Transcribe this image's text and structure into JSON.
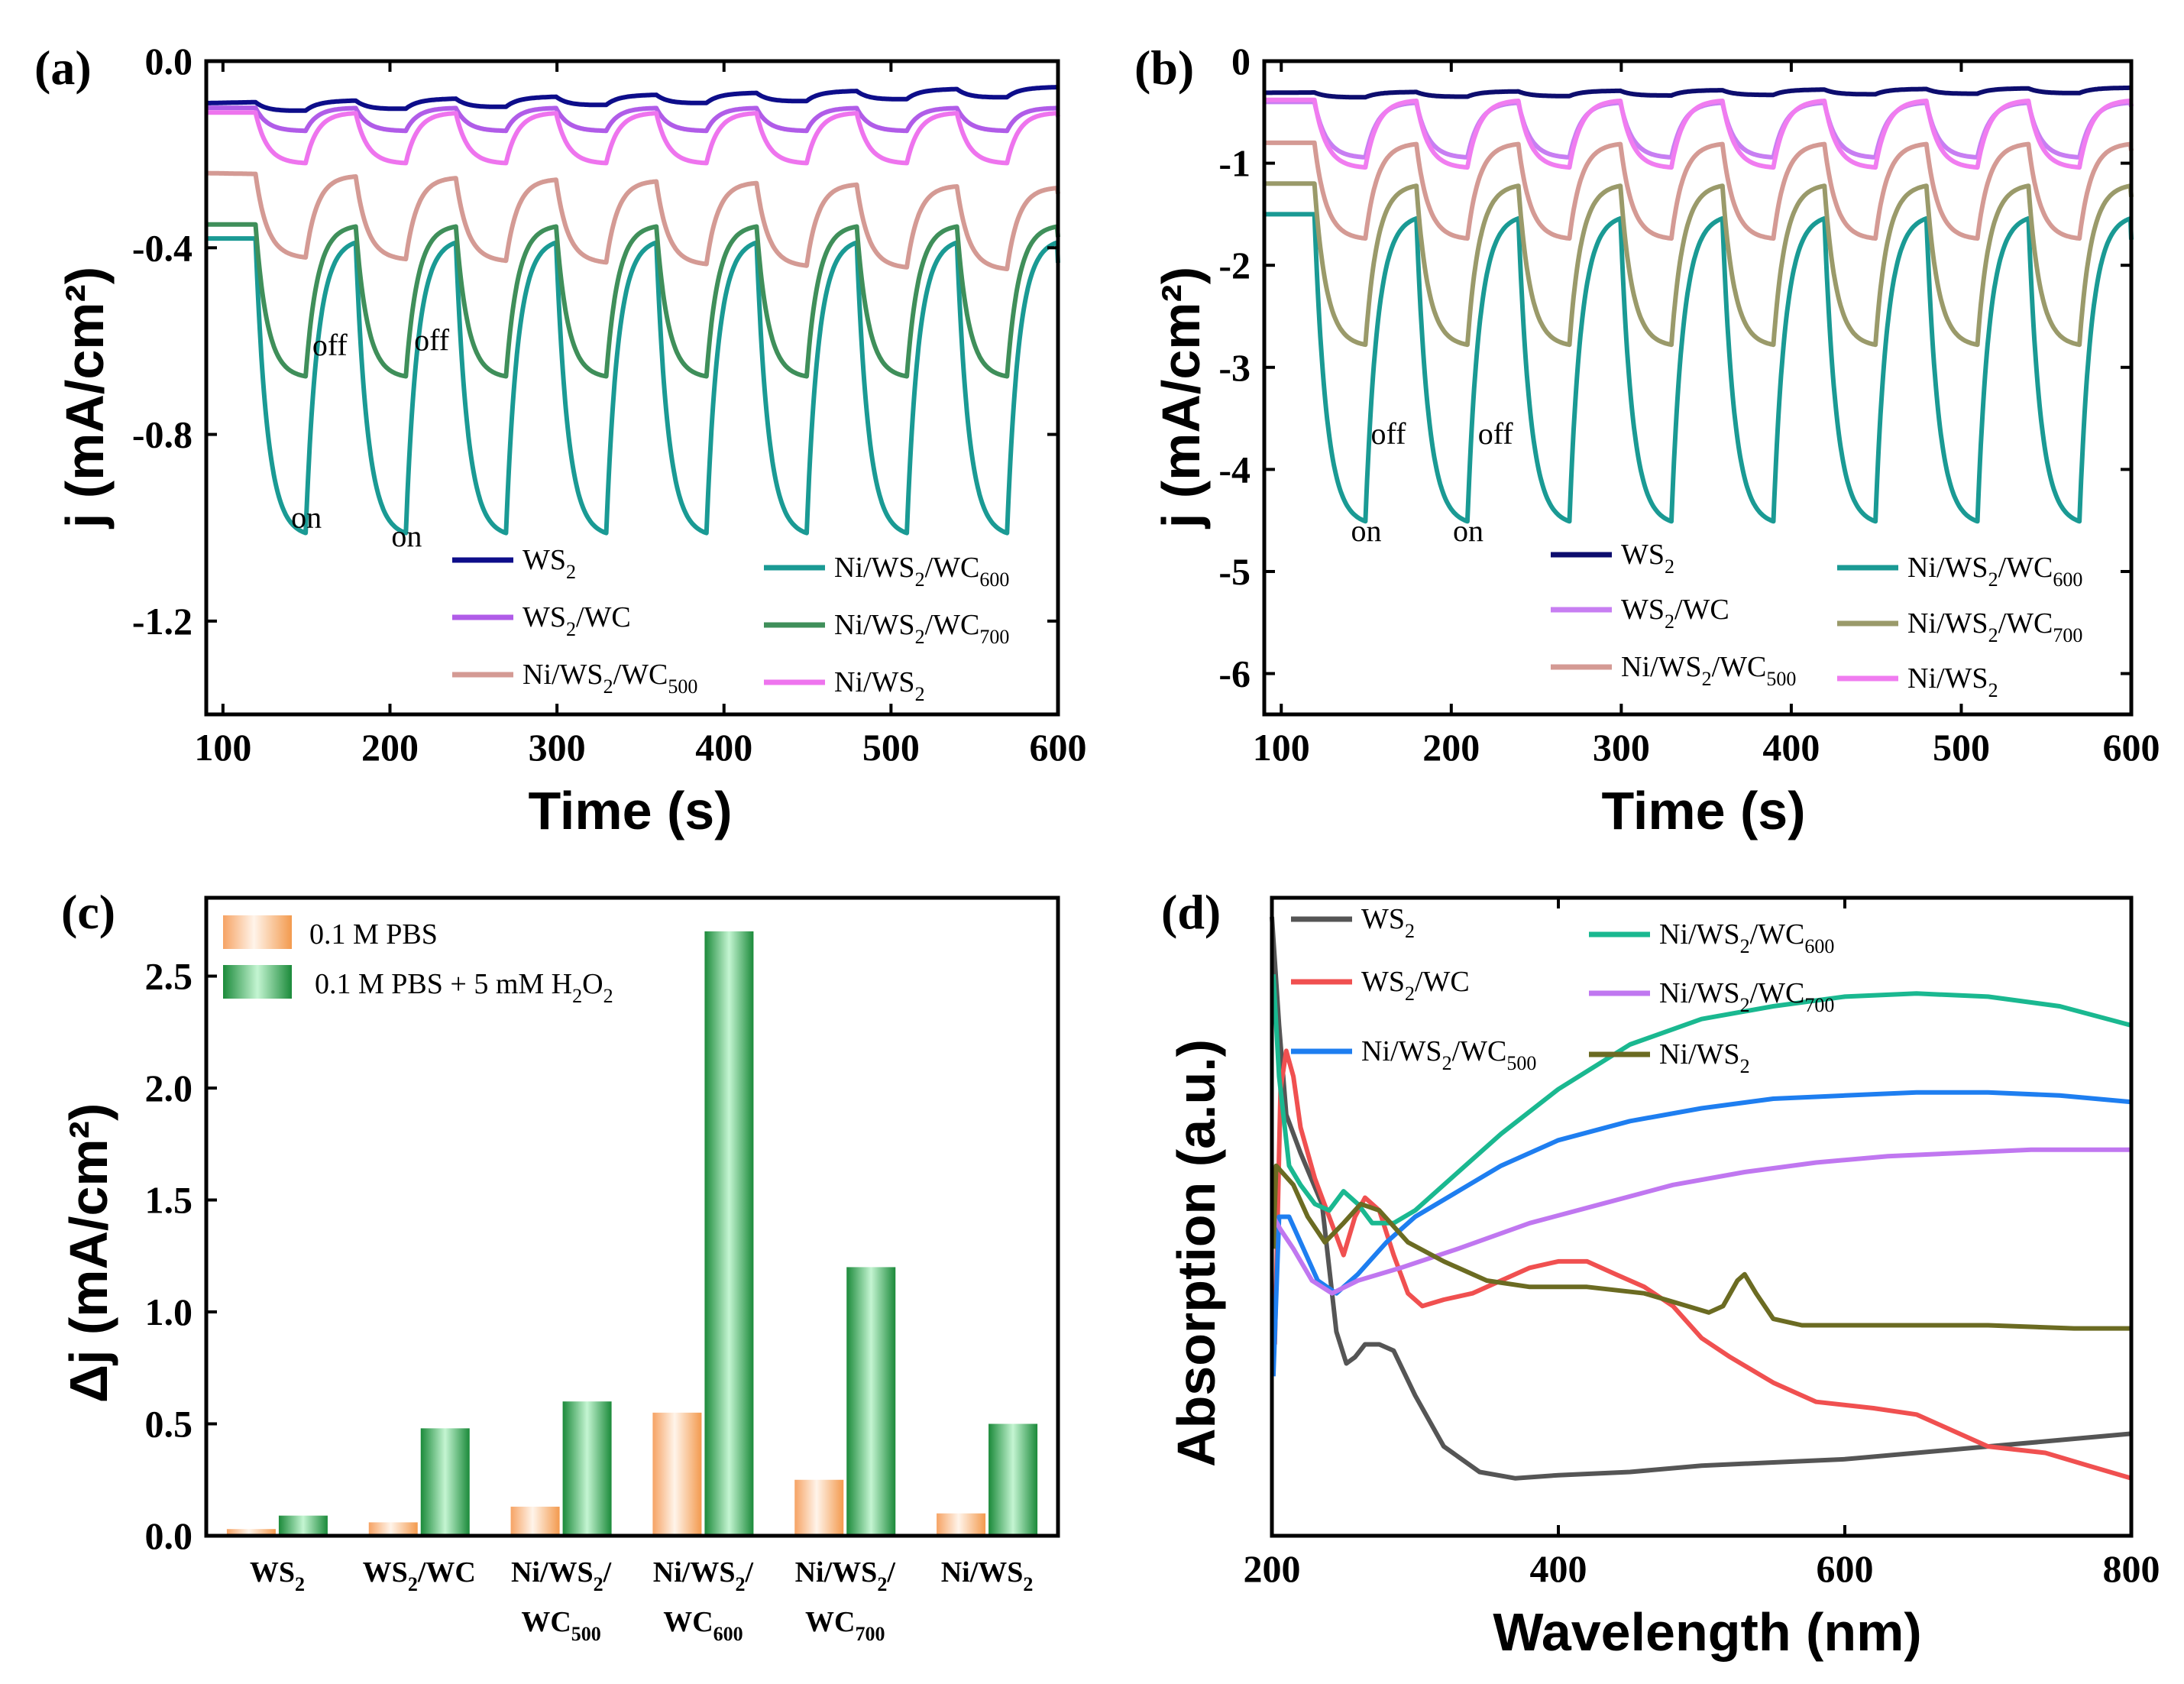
{
  "chart_data": [
    {
      "panel": "(a)",
      "type": "line",
      "xlabel": "Time (s)",
      "ylabel": "j (mA/cm²)",
      "xlim": [
        90,
        600
      ],
      "ylim": [
        -1.4,
        0.0
      ],
      "xticks": [
        100,
        200,
        300,
        400,
        500,
        600
      ],
      "yticks": [
        0.0,
        -0.4,
        -0.8,
        -1.2
      ],
      "ytick_labels": [
        "0.0",
        "-0.4",
        "-0.8",
        "-1.2"
      ],
      "light_period_s": 30,
      "light_start_s": 120,
      "series": [
        {
          "name": "WS2",
          "label_main": "WS",
          "label_sub": "2",
          "label_tail": "",
          "color": "#0d0d8a",
          "dark": -0.09,
          "light": -0.11,
          "drift": 0.035
        },
        {
          "name": "WS2/WC",
          "label_main": "WS",
          "label_sub": "2",
          "label_tail": "/WC",
          "color": "#b05ce8",
          "dark": -0.1,
          "light": -0.15,
          "drift": 0.0
        },
        {
          "name": "Ni/WS2/WC500",
          "label_main": "Ni/WS",
          "label_sub": "2",
          "label_tail": "/WC",
          "label_sub2": "500",
          "color": "#d49a94",
          "dark": -0.24,
          "light": -0.42,
          "drift": -0.03
        },
        {
          "name": "Ni/WS2/WC600",
          "label_main": "Ni/WS",
          "label_sub": "2",
          "label_tail": "/WC",
          "label_sub2": "600",
          "color": "#1a9a94",
          "dark": -0.38,
          "light": -1.02,
          "drift": 0.0
        },
        {
          "name": "Ni/WS2/WC700",
          "label_main": "Ni/WS",
          "label_sub": "2",
          "label_tail": "/WC",
          "label_sub2": "700",
          "color": "#3f8f5a",
          "dark": -0.35,
          "light": -0.68,
          "drift": 0.0
        },
        {
          "name": "Ni/WS2",
          "label_main": "Ni/WS",
          "label_sub": "2",
          "label_tail": "",
          "color": "#ee74ee",
          "dark": -0.11,
          "light": -0.22,
          "drift": 0.0
        }
      ],
      "annotations": [
        {
          "text": "on",
          "x": 150,
          "y": -1.0
        },
        {
          "text": "on",
          "x": 210,
          "y": -1.04
        },
        {
          "text": "off",
          "x": 164,
          "y": -0.63
        },
        {
          "text": "off",
          "x": 225,
          "y": -0.62
        }
      ]
    },
    {
      "panel": "(b)",
      "type": "line",
      "xlabel": "Time (s)",
      "ylabel": "j (mA/cm²)",
      "xlim": [
        90,
        600
      ],
      "ylim": [
        -6.4,
        0.0
      ],
      "xticks": [
        100,
        200,
        300,
        400,
        500,
        600
      ],
      "yticks": [
        0,
        -1,
        -2,
        -3,
        -4,
        -5,
        -6
      ],
      "ytick_labels": [
        "0",
        "-1",
        "-2",
        "-3",
        "-4",
        "-5",
        "-6"
      ],
      "light_period_s": 30,
      "light_start_s": 120,
      "series": [
        {
          "name": "WS2",
          "label_main": "WS",
          "label_sub": "2",
          "label_tail": "",
          "color": "#0d0d6e",
          "dark": -0.31,
          "light": -0.36,
          "drift": 0.05
        },
        {
          "name": "WS2/WC",
          "label_main": "WS",
          "label_sub": "2",
          "label_tail": "/WC",
          "color": "#c77ef2",
          "dark": -0.4,
          "light": -0.95,
          "drift": 0.0
        },
        {
          "name": "Ni/WS2/WC500",
          "label_main": "Ni/WS",
          "label_sub": "2",
          "label_tail": "/WC",
          "label_sub2": "500",
          "color": "#d49a94",
          "dark": -0.8,
          "light": -1.75,
          "drift": 0.0
        },
        {
          "name": "Ni/WS2/WC600",
          "label_main": "Ni/WS",
          "label_sub": "2",
          "label_tail": "/WC",
          "label_sub2": "600",
          "color": "#1a9a94",
          "dark": -1.5,
          "light": -4.55,
          "drift": 0.0
        },
        {
          "name": "Ni/WS2/WC700",
          "label_main": "Ni/WS",
          "label_sub": "2",
          "label_tail": "/WC",
          "label_sub2": "700",
          "color": "#9a9a6a",
          "dark": -1.2,
          "light": -2.8,
          "drift": 0.0
        },
        {
          "name": "Ni/WS2",
          "label_main": "Ni/WS",
          "label_sub": "2",
          "label_tail": "",
          "color": "#f07cf0",
          "dark": -0.38,
          "light": -1.05,
          "drift": 0.0
        }
      ],
      "annotations": [
        {
          "text": "on",
          "x": 150,
          "y": -4.7
        },
        {
          "text": "on",
          "x": 210,
          "y": -4.7
        },
        {
          "text": "off",
          "x": 163,
          "y": -3.75
        },
        {
          "text": "off",
          "x": 226,
          "y": -3.75
        }
      ]
    },
    {
      "panel": "(c)",
      "type": "bar",
      "ylabel": "Δj (mA/cm²)",
      "ylim": [
        0.0,
        2.85
      ],
      "yticks": [
        0.0,
        0.5,
        1.0,
        1.5,
        2.0,
        2.5
      ],
      "ytick_labels": [
        "0.0",
        "0.5",
        "1.0",
        "1.5",
        "2.0",
        "2.5"
      ],
      "categories": [
        {
          "line1": "WS",
          "sub1": "2",
          "tail1": "",
          "line2": "",
          "sub2": ""
        },
        {
          "line1": "WS",
          "sub1": "2",
          "tail1": "/WC",
          "line2": "",
          "sub2": ""
        },
        {
          "line1": "Ni/WS",
          "sub1": "2",
          "tail1": "/",
          "line2": "WC",
          "sub2": "500"
        },
        {
          "line1": "Ni/WS",
          "sub1": "2",
          "tail1": "/",
          "line2": "WC",
          "sub2": "600"
        },
        {
          "line1": "Ni/WS",
          "sub1": "2",
          "tail1": "/",
          "line2": "WC",
          "sub2": "700"
        },
        {
          "line1": "Ni/WS",
          "sub1": "2",
          "tail1": "",
          "line2": "",
          "sub2": ""
        }
      ],
      "series": [
        {
          "name": "0.1 M PBS",
          "label": "0.1 M PBS",
          "color_light": "#fde3cf",
          "color_dark": "#f39a4e",
          "values": [
            0.03,
            0.06,
            0.13,
            0.55,
            0.25,
            0.1
          ]
        },
        {
          "name": "0.1 M PBS + 5 mM H2O2",
          "label": "0.1 M PBS + 5 mM H",
          "label_sub": "2",
          "label_mid": "O",
          "label_sub2": "2",
          "color_light": "#b8f0c8",
          "color_dark": "#1b8a3a",
          "values": [
            0.09,
            0.48,
            0.6,
            2.7,
            1.2,
            0.5
          ]
        }
      ]
    },
    {
      "panel": "(d)",
      "type": "line",
      "xlabel": "Wavelength (nm)",
      "ylabel": "Absorption (a.u.)",
      "xlim": [
        200,
        800
      ],
      "ylim": [
        0,
        100
      ],
      "xticks": [
        200,
        400,
        600,
        800
      ],
      "series": [
        {
          "name": "WS2",
          "label_main": "WS",
          "label_sub": "2",
          "label_tail": "",
          "color": "#555555",
          "points": [
            [
              200,
              97
            ],
            [
              205,
              80
            ],
            [
              210,
              66
            ],
            [
              220,
              60
            ],
            [
              235,
              52
            ],
            [
              245,
              32
            ],
            [
              252,
              27
            ],
            [
              258,
              28
            ],
            [
              265,
              30
            ],
            [
              275,
              30
            ],
            [
              285,
              29
            ],
            [
              300,
              22
            ],
            [
              320,
              14
            ],
            [
              345,
              10
            ],
            [
              370,
              9
            ],
            [
              400,
              9.5
            ],
            [
              450,
              10
            ],
            [
              500,
              11
            ],
            [
              550,
              11.5
            ],
            [
              600,
              12
            ],
            [
              650,
              13
            ],
            [
              700,
              14
            ],
            [
              750,
              15
            ],
            [
              800,
              16
            ]
          ]
        },
        {
          "name": "WS2/WC",
          "label_main": "WS",
          "label_sub": "2",
          "label_tail": "/WC",
          "color": "#f05050",
          "points": [
            [
              202,
              30
            ],
            [
              206,
              70
            ],
            [
              210,
              76
            ],
            [
              215,
              72
            ],
            [
              220,
              64
            ],
            [
              230,
              56
            ],
            [
              240,
              50
            ],
            [
              250,
              44
            ],
            [
              258,
              50
            ],
            [
              265,
              53
            ],
            [
              275,
              51
            ],
            [
              285,
              44
            ],
            [
              295,
              38
            ],
            [
              305,
              36
            ],
            [
              320,
              37
            ],
            [
              340,
              38
            ],
            [
              360,
              40
            ],
            [
              380,
              42
            ],
            [
              400,
              43
            ],
            [
              420,
              43
            ],
            [
              440,
              41
            ],
            [
              460,
              39
            ],
            [
              480,
              36
            ],
            [
              500,
              31
            ],
            [
              520,
              28
            ],
            [
              550,
              24
            ],
            [
              580,
              21
            ],
            [
              620,
              20
            ],
            [
              650,
              19
            ],
            [
              670,
              17
            ],
            [
              700,
              14
            ],
            [
              740,
              13
            ],
            [
              770,
              11
            ],
            [
              800,
              9
            ]
          ]
        },
        {
          "name": "Ni/WS2/WC500",
          "label_main": "Ni/WS",
          "label_sub": "2",
          "label_tail": "/WC",
          "label_sub2": "500",
          "color": "#1e7ef0",
          "points": [
            [
              201,
              25
            ],
            [
              205,
              50
            ],
            [
              212,
              50
            ],
            [
              222,
              45
            ],
            [
              232,
              40
            ],
            [
              245,
              38
            ],
            [
              260,
              41
            ],
            [
              280,
              46
            ],
            [
              300,
              50
            ],
            [
              330,
              54
            ],
            [
              360,
              58
            ],
            [
              400,
              62
            ],
            [
              450,
              65
            ],
            [
              500,
              67
            ],
            [
              550,
              68.5
            ],
            [
              600,
              69
            ],
            [
              650,
              69.5
            ],
            [
              700,
              69.5
            ],
            [
              750,
              69
            ],
            [
              800,
              68
            ]
          ]
        },
        {
          "name": "Ni/WS2/WC600",
          "label_main": "Ni/WS",
          "label_sub": "2",
          "label_tail": "/WC",
          "label_sub2": "600",
          "color": "#1ab890",
          "points": [
            [
              201,
              88
            ],
            [
              205,
              72
            ],
            [
              212,
              58
            ],
            [
              220,
              55
            ],
            [
              230,
              52
            ],
            [
              240,
              51
            ],
            [
              250,
              54
            ],
            [
              260,
              52
            ],
            [
              270,
              49
            ],
            [
              285,
              49
            ],
            [
              300,
              51
            ],
            [
              330,
              57
            ],
            [
              360,
              63
            ],
            [
              400,
              70
            ],
            [
              450,
              77
            ],
            [
              500,
              81
            ],
            [
              550,
              83
            ],
            [
              600,
              84.5
            ],
            [
              650,
              85
            ],
            [
              700,
              84.5
            ],
            [
              750,
              83
            ],
            [
              800,
              80
            ]
          ]
        },
        {
          "name": "Ni/WS2/WC700",
          "label_main": "Ni/WS",
          "label_sub": "2",
          "label_tail": "/WC",
          "label_sub2": "700",
          "color": "#c077f0",
          "points": [
            [
              201,
              50
            ],
            [
              206,
              48
            ],
            [
              215,
              45
            ],
            [
              228,
              40
            ],
            [
              242,
              38
            ],
            [
              260,
              40
            ],
            [
              290,
              42
            ],
            [
              330,
              45
            ],
            [
              380,
              49
            ],
            [
              430,
              52
            ],
            [
              480,
              55
            ],
            [
              530,
              57
            ],
            [
              580,
              58.5
            ],
            [
              630,
              59.5
            ],
            [
              680,
              60
            ],
            [
              730,
              60.5
            ],
            [
              800,
              60.5
            ]
          ]
        },
        {
          "name": "Ni/WS2",
          "label_main": "Ni/WS",
          "label_sub": "2",
          "label_tail": "",
          "color": "#6b6b22",
          "points": [
            [
              201,
              45
            ],
            [
              203,
              58
            ],
            [
              207,
              57
            ],
            [
              215,
              55
            ],
            [
              225,
              50
            ],
            [
              237,
              46
            ],
            [
              250,
              49
            ],
            [
              262,
              52
            ],
            [
              275,
              51
            ],
            [
              295,
              46
            ],
            [
              320,
              43
            ],
            [
              350,
              40
            ],
            [
              380,
              39
            ],
            [
              420,
              39
            ],
            [
              460,
              38
            ],
            [
              490,
              36
            ],
            [
              505,
              35
            ],
            [
              515,
              36
            ],
            [
              525,
              40
            ],
            [
              530,
              41
            ],
            [
              538,
              38
            ],
            [
              550,
              34
            ],
            [
              570,
              33
            ],
            [
              620,
              33
            ],
            [
              700,
              33
            ],
            [
              760,
              32.5
            ],
            [
              800,
              32.5
            ]
          ]
        }
      ]
    }
  ]
}
